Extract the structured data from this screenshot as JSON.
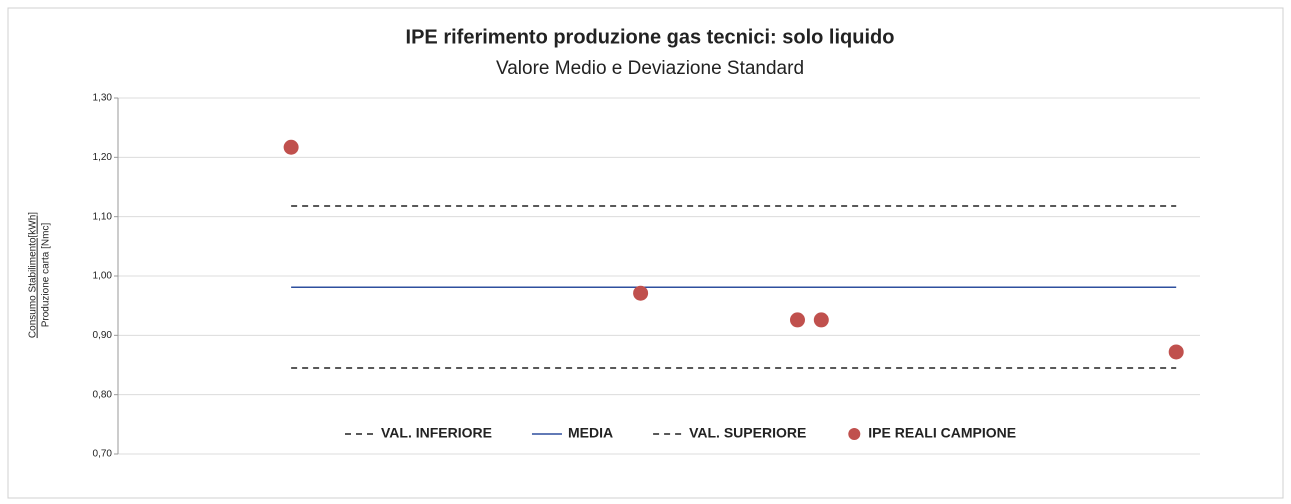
{
  "chart_data": {
    "type": "line",
    "title": "IPE riferimento produzione gas tecnici: solo liquido",
    "subtitle": "Valore Medio e Deviazione Standard",
    "y_label": [
      "Consumo Stabilimento[kWh]",
      "Produzione carta [Nmc]"
    ],
    "xlim": [
      0,
      100
    ],
    "ylim": [
      0.7,
      1.3
    ],
    "yticks": [
      {
        "value": 0.7,
        "label": "0,70"
      },
      {
        "value": 0.8,
        "label": "0,80"
      },
      {
        "value": 0.9,
        "label": "0,90"
      },
      {
        "value": 1.0,
        "label": "1,00"
      },
      {
        "value": 1.1,
        "label": "1,10"
      },
      {
        "value": 1.2,
        "label": "1,20"
      },
      {
        "value": 1.3,
        "label": "1,30"
      }
    ],
    "grid": true,
    "legend": "bottom",
    "series": [
      {
        "name": "VAL. INFERIORE",
        "type": "line",
        "dashed": true,
        "color": "#222222",
        "x": [
          16,
          97.8
        ],
        "values": [
          0.845,
          0.845
        ]
      },
      {
        "name": "MEDIA",
        "type": "line",
        "dashed": false,
        "color": "#2e4f9e",
        "x": [
          16,
          97.8
        ],
        "values": [
          0.981,
          0.981
        ]
      },
      {
        "name": "VAL. SUPERIORE",
        "type": "line",
        "dashed": true,
        "color": "#222222",
        "x": [
          16,
          97.8
        ],
        "values": [
          1.118,
          1.118
        ]
      },
      {
        "name": "IPE REALI CAMPIONE",
        "type": "scatter",
        "color": "#c0504d",
        "x": [
          16,
          48.3,
          62.8,
          65.0,
          97.8
        ],
        "values": [
          1.217,
          0.971,
          0.926,
          0.926,
          0.872
        ]
      }
    ]
  }
}
